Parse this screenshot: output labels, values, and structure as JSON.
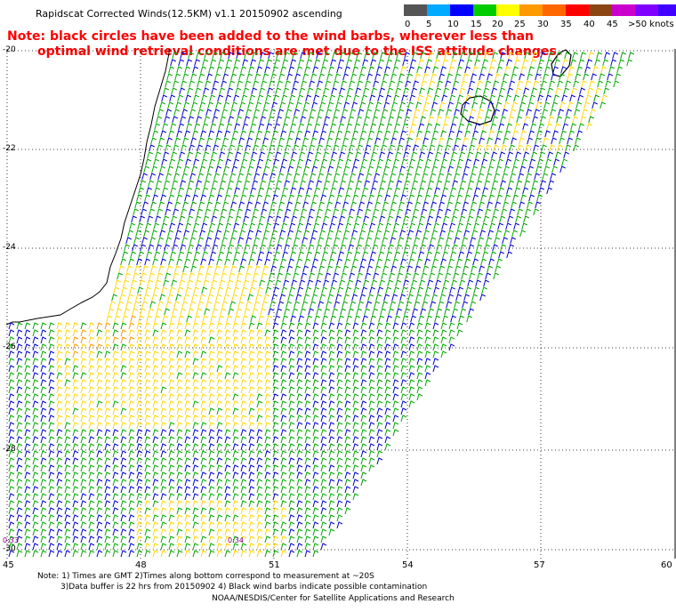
{
  "title": "Rapidscat Corrected Winds(12.5KM) v1.1 20150902 ascending",
  "note_line1": "Note: black circles have been added to the wind barbs, wherever less than",
  "note_line2": "optimal wind retrieval conditions are met due to the ISS attitude changes.",
  "colorbar": {
    "labels": [
      "0",
      "5",
      "10",
      "15",
      "20",
      "25",
      "30",
      "35",
      "40",
      "45",
      ">50 knots"
    ],
    "colors": [
      "#555555",
      "#00aaff",
      "#0000ff",
      "#00cc00",
      "#ffff00",
      "#ff9900",
      "#ff6600",
      "#ff0000",
      "#8b4513",
      "#cc00cc",
      "#7f00ff",
      "#3f00ff"
    ]
  },
  "axes": {
    "lat_labels": [
      "-20",
      "-22",
      "-24",
      "-26",
      "-28",
      "-30"
    ],
    "lon_labels": [
      "45",
      "48",
      "51",
      "54",
      "57",
      "60"
    ]
  },
  "time_labels": [
    "0:33",
    "0:34"
  ],
  "footer": {
    "line1": "Note: 1) Times are GMT 2)Times along bottom correspond to measurement at ~20S",
    "line2": "3)Data buffer is 22 hrs from 20150902 4) Black wind barbs indicate possible contamination",
    "line3": "NOAA/NESDIS/Center for Satellite Applications and Research"
  }
}
